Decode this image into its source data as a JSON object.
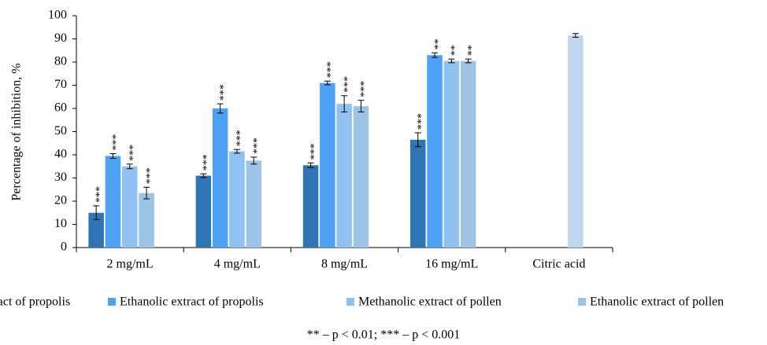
{
  "chart_data": {
    "type": "bar",
    "y_label": "Percentage of inhibition, %",
    "categories": [
      "2 mg/mL",
      "4 mg/mL",
      "8 mg/mL",
      "16 mg/mL",
      "Citric acid"
    ],
    "series": [
      {
        "name": "Methanolic extract of propolis",
        "color": "#2e75b6",
        "values": [
          15,
          31,
          35.5,
          46.5,
          null
        ],
        "errors": [
          3,
          0.8,
          1,
          3,
          null
        ],
        "annotations": [
          "***",
          "***",
          "***",
          "***",
          null
        ]
      },
      {
        "name": "Ethanolic extract of propolis",
        "color": "#4ea2f5",
        "values": [
          39.5,
          60,
          71,
          83,
          null
        ],
        "errors": [
          1,
          2,
          0.8,
          1,
          null
        ],
        "annotations": [
          "***",
          "***",
          "***",
          "**",
          null
        ]
      },
      {
        "name": "Methanolic extract of pollen",
        "color": "#8fc1f2",
        "values": [
          35,
          41.5,
          62,
          80.5,
          null
        ],
        "errors": [
          1,
          0.8,
          3.5,
          0.8,
          null
        ],
        "annotations": [
          "***",
          "***",
          "***",
          "**",
          null
        ]
      },
      {
        "name": "Ethanolic extract of pollen",
        "color": "#9dc3e6",
        "values": [
          23.5,
          37.5,
          61,
          80.5,
          91.5
        ],
        "errors": [
          2.5,
          1.5,
          2.5,
          0.8,
          0.8
        ],
        "annotations": [
          "***",
          "***",
          "***",
          "**",
          null
        ],
        "colors": [
          "#9dc3e6",
          "#9dc3e6",
          "#9dc3e6",
          "#9dc3e6",
          "#bdd7ee"
        ]
      }
    ],
    "ylim": [
      0,
      100
    ],
    "yticks": [
      0,
      10,
      20,
      30,
      40,
      50,
      60,
      70,
      80,
      90,
      100
    ],
    "legend": "bottom",
    "footnote": "** – p < 0.01; *** – p < 0.001"
  }
}
